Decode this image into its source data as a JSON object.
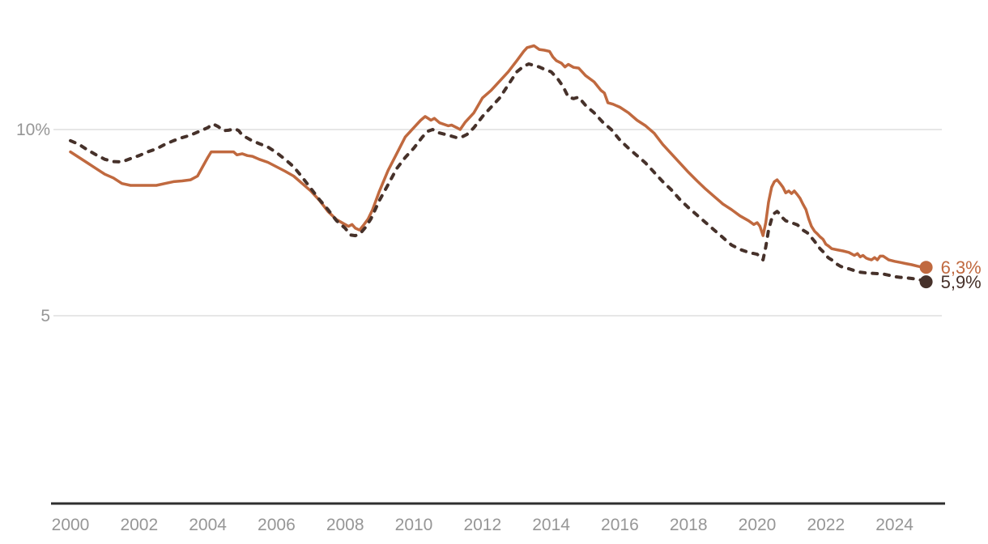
{
  "chart_data": {
    "type": "line",
    "title": "",
    "unit": "%",
    "grid": "horizontal-only",
    "legend_position": "end-of-line-labels",
    "x_axis": {
      "tick_labels": [
        "2000",
        "2002",
        "2004",
        "2006",
        "2008",
        "2010",
        "2012",
        "2014",
        "2016",
        "2018",
        "2020",
        "2022",
        "2024"
      ],
      "tick_years": [
        2000,
        2002,
        2004,
        2006,
        2008,
        2010,
        2012,
        2014,
        2016,
        2018,
        2020,
        2022,
        2024
      ],
      "range_years": [
        2000,
        2025
      ]
    },
    "y_axis": {
      "gridlines": [
        {
          "value": 10,
          "label": "10%"
        },
        {
          "value": 5,
          "label": "5"
        }
      ],
      "label_color": "#969696"
    },
    "colors": {
      "solid_line": "#c0693f",
      "dashed_line": "#46312a",
      "axis_line": "#2e2e2e",
      "gridline": "#e7e7e7",
      "tick_label": "#969696"
    },
    "series": [
      {
        "id": "solid",
        "style": "solid",
        "color": "#c0693f",
        "end_label": "6,3%",
        "end_value": 6.3,
        "points": [
          [
            2000.0,
            9.4
          ],
          [
            2000.25,
            9.25
          ],
          [
            2000.5,
            9.1
          ],
          [
            2000.75,
            8.95
          ],
          [
            2001.0,
            8.8
          ],
          [
            2001.25,
            8.7
          ],
          [
            2001.5,
            8.55
          ],
          [
            2001.75,
            8.5
          ],
          [
            2002.0,
            8.5
          ],
          [
            2002.25,
            8.5
          ],
          [
            2002.5,
            8.5
          ],
          [
            2002.75,
            8.55
          ],
          [
            2003.0,
            8.6
          ],
          [
            2003.25,
            8.62
          ],
          [
            2003.5,
            8.65
          ],
          [
            2003.7,
            8.75
          ],
          [
            2003.85,
            9.0
          ],
          [
            2004.0,
            9.25
          ],
          [
            2004.1,
            9.4
          ],
          [
            2004.25,
            9.4
          ],
          [
            2004.5,
            9.4
          ],
          [
            2004.75,
            9.4
          ],
          [
            2004.85,
            9.32
          ],
          [
            2005.0,
            9.35
          ],
          [
            2005.15,
            9.3
          ],
          [
            2005.3,
            9.28
          ],
          [
            2005.5,
            9.2
          ],
          [
            2005.75,
            9.12
          ],
          [
            2006.0,
            9.0
          ],
          [
            2006.25,
            8.88
          ],
          [
            2006.5,
            8.75
          ],
          [
            2006.75,
            8.55
          ],
          [
            2007.0,
            8.35
          ],
          [
            2007.25,
            8.1
          ],
          [
            2007.5,
            7.8
          ],
          [
            2007.75,
            7.58
          ],
          [
            2008.0,
            7.45
          ],
          [
            2008.1,
            7.4
          ],
          [
            2008.2,
            7.45
          ],
          [
            2008.3,
            7.35
          ],
          [
            2008.42,
            7.3
          ],
          [
            2008.55,
            7.45
          ],
          [
            2008.67,
            7.6
          ],
          [
            2008.8,
            7.85
          ],
          [
            2009.0,
            8.35
          ],
          [
            2009.25,
            8.9
          ],
          [
            2009.5,
            9.35
          ],
          [
            2009.75,
            9.8
          ],
          [
            2010.0,
            10.05
          ],
          [
            2010.2,
            10.25
          ],
          [
            2010.33,
            10.35
          ],
          [
            2010.5,
            10.25
          ],
          [
            2010.6,
            10.3
          ],
          [
            2010.75,
            10.18
          ],
          [
            2011.0,
            10.1
          ],
          [
            2011.1,
            10.12
          ],
          [
            2011.25,
            10.05
          ],
          [
            2011.35,
            10.0
          ],
          [
            2011.5,
            10.2
          ],
          [
            2011.75,
            10.45
          ],
          [
            2012.0,
            10.85
          ],
          [
            2012.25,
            11.05
          ],
          [
            2012.5,
            11.3
          ],
          [
            2012.75,
            11.55
          ],
          [
            2013.0,
            11.85
          ],
          [
            2013.2,
            12.1
          ],
          [
            2013.3,
            12.2
          ],
          [
            2013.5,
            12.25
          ],
          [
            2013.65,
            12.15
          ],
          [
            2013.8,
            12.13
          ],
          [
            2013.95,
            12.1
          ],
          [
            2014.05,
            11.95
          ],
          [
            2014.15,
            11.85
          ],
          [
            2014.3,
            11.78
          ],
          [
            2014.4,
            11.68
          ],
          [
            2014.5,
            11.75
          ],
          [
            2014.65,
            11.67
          ],
          [
            2014.8,
            11.65
          ],
          [
            2014.9,
            11.55
          ],
          [
            2015.0,
            11.45
          ],
          [
            2015.25,
            11.28
          ],
          [
            2015.45,
            11.05
          ],
          [
            2015.55,
            10.98
          ],
          [
            2015.65,
            10.72
          ],
          [
            2015.8,
            10.68
          ],
          [
            2016.0,
            10.6
          ],
          [
            2016.25,
            10.45
          ],
          [
            2016.5,
            10.25
          ],
          [
            2016.75,
            10.1
          ],
          [
            2017.0,
            9.9
          ],
          [
            2017.25,
            9.6
          ],
          [
            2017.5,
            9.35
          ],
          [
            2017.75,
            9.1
          ],
          [
            2018.0,
            8.85
          ],
          [
            2018.25,
            8.62
          ],
          [
            2018.5,
            8.4
          ],
          [
            2018.75,
            8.2
          ],
          [
            2019.0,
            8.0
          ],
          [
            2019.25,
            7.85
          ],
          [
            2019.5,
            7.68
          ],
          [
            2019.75,
            7.55
          ],
          [
            2019.9,
            7.45
          ],
          [
            2020.0,
            7.5
          ],
          [
            2020.08,
            7.4
          ],
          [
            2020.17,
            7.15
          ],
          [
            2020.25,
            7.5
          ],
          [
            2020.33,
            8.05
          ],
          [
            2020.42,
            8.45
          ],
          [
            2020.5,
            8.6
          ],
          [
            2020.58,
            8.65
          ],
          [
            2020.67,
            8.55
          ],
          [
            2020.75,
            8.45
          ],
          [
            2020.83,
            8.3
          ],
          [
            2020.92,
            8.35
          ],
          [
            2021.0,
            8.28
          ],
          [
            2021.08,
            8.35
          ],
          [
            2021.17,
            8.25
          ],
          [
            2021.25,
            8.15
          ],
          [
            2021.33,
            8.0
          ],
          [
            2021.42,
            7.85
          ],
          [
            2021.5,
            7.6
          ],
          [
            2021.58,
            7.4
          ],
          [
            2021.67,
            7.27
          ],
          [
            2021.75,
            7.2
          ],
          [
            2021.83,
            7.12
          ],
          [
            2021.92,
            7.05
          ],
          [
            2022.0,
            6.92
          ],
          [
            2022.08,
            6.87
          ],
          [
            2022.17,
            6.8
          ],
          [
            2022.33,
            6.77
          ],
          [
            2022.5,
            6.74
          ],
          [
            2022.67,
            6.7
          ],
          [
            2022.83,
            6.62
          ],
          [
            2022.92,
            6.67
          ],
          [
            2023.0,
            6.58
          ],
          [
            2023.08,
            6.62
          ],
          [
            2023.17,
            6.55
          ],
          [
            2023.25,
            6.52
          ],
          [
            2023.33,
            6.5
          ],
          [
            2023.42,
            6.56
          ],
          [
            2023.5,
            6.5
          ],
          [
            2023.58,
            6.6
          ],
          [
            2023.67,
            6.6
          ],
          [
            2023.75,
            6.55
          ],
          [
            2023.83,
            6.5
          ],
          [
            2023.92,
            6.48
          ],
          [
            2024.0,
            6.46
          ],
          [
            2024.17,
            6.43
          ],
          [
            2024.33,
            6.4
          ],
          [
            2024.5,
            6.37
          ],
          [
            2024.67,
            6.33
          ],
          [
            2024.83,
            6.3
          ],
          [
            2024.92,
            6.3
          ]
        ]
      },
      {
        "id": "dashed",
        "style": "dashed",
        "color": "#46312a",
        "end_label": "5,9%",
        "end_value": 5.9,
        "points": [
          [
            2000.0,
            9.7
          ],
          [
            2000.25,
            9.6
          ],
          [
            2000.5,
            9.45
          ],
          [
            2000.75,
            9.32
          ],
          [
            2001.0,
            9.2
          ],
          [
            2001.25,
            9.14
          ],
          [
            2001.5,
            9.13
          ],
          [
            2001.75,
            9.22
          ],
          [
            2002.0,
            9.3
          ],
          [
            2002.25,
            9.4
          ],
          [
            2002.5,
            9.48
          ],
          [
            2002.75,
            9.6
          ],
          [
            2003.0,
            9.7
          ],
          [
            2003.25,
            9.78
          ],
          [
            2003.5,
            9.85
          ],
          [
            2003.75,
            9.95
          ],
          [
            2004.0,
            10.05
          ],
          [
            2004.15,
            10.15
          ],
          [
            2004.3,
            10.08
          ],
          [
            2004.45,
            9.97
          ],
          [
            2004.6,
            9.98
          ],
          [
            2004.79,
            10.02
          ],
          [
            2004.9,
            9.97
          ],
          [
            2005.0,
            9.85
          ],
          [
            2005.25,
            9.72
          ],
          [
            2005.5,
            9.62
          ],
          [
            2005.75,
            9.53
          ],
          [
            2006.0,
            9.38
          ],
          [
            2006.25,
            9.2
          ],
          [
            2006.5,
            9.0
          ],
          [
            2006.75,
            8.72
          ],
          [
            2007.0,
            8.42
          ],
          [
            2007.25,
            8.12
          ],
          [
            2007.5,
            7.85
          ],
          [
            2007.75,
            7.55
          ],
          [
            2008.0,
            7.35
          ],
          [
            2008.15,
            7.17
          ],
          [
            2008.3,
            7.15
          ],
          [
            2008.45,
            7.22
          ],
          [
            2008.6,
            7.38
          ],
          [
            2008.75,
            7.6
          ],
          [
            2009.0,
            8.1
          ],
          [
            2009.25,
            8.52
          ],
          [
            2009.5,
            8.95
          ],
          [
            2009.75,
            9.25
          ],
          [
            2010.0,
            9.5
          ],
          [
            2010.25,
            9.8
          ],
          [
            2010.4,
            9.95
          ],
          [
            2010.55,
            10.0
          ],
          [
            2010.7,
            9.92
          ],
          [
            2011.0,
            9.85
          ],
          [
            2011.25,
            9.78
          ],
          [
            2011.4,
            9.8
          ],
          [
            2011.55,
            9.87
          ],
          [
            2011.75,
            10.05
          ],
          [
            2012.0,
            10.35
          ],
          [
            2012.25,
            10.6
          ],
          [
            2012.5,
            10.85
          ],
          [
            2012.75,
            11.2
          ],
          [
            2013.0,
            11.55
          ],
          [
            2013.2,
            11.7
          ],
          [
            2013.35,
            11.76
          ],
          [
            2013.5,
            11.72
          ],
          [
            2013.65,
            11.68
          ],
          [
            2013.8,
            11.62
          ],
          [
            2014.0,
            11.55
          ],
          [
            2014.2,
            11.35
          ],
          [
            2014.35,
            11.15
          ],
          [
            2014.5,
            10.87
          ],
          [
            2014.65,
            10.83
          ],
          [
            2014.8,
            10.87
          ],
          [
            2015.0,
            10.65
          ],
          [
            2015.25,
            10.45
          ],
          [
            2015.5,
            10.2
          ],
          [
            2015.75,
            10.0
          ],
          [
            2016.0,
            9.72
          ],
          [
            2016.25,
            9.5
          ],
          [
            2016.5,
            9.3
          ],
          [
            2016.75,
            9.1
          ],
          [
            2017.0,
            8.85
          ],
          [
            2017.25,
            8.6
          ],
          [
            2017.5,
            8.38
          ],
          [
            2017.75,
            8.12
          ],
          [
            2018.0,
            7.9
          ],
          [
            2018.25,
            7.7
          ],
          [
            2018.5,
            7.5
          ],
          [
            2018.75,
            7.3
          ],
          [
            2019.0,
            7.1
          ],
          [
            2019.25,
            6.9
          ],
          [
            2019.5,
            6.78
          ],
          [
            2019.75,
            6.7
          ],
          [
            2020.0,
            6.65
          ],
          [
            2020.08,
            6.58
          ],
          [
            2020.17,
            6.5
          ],
          [
            2020.25,
            6.85
          ],
          [
            2020.33,
            7.3
          ],
          [
            2020.42,
            7.6
          ],
          [
            2020.5,
            7.75
          ],
          [
            2020.58,
            7.8
          ],
          [
            2020.67,
            7.72
          ],
          [
            2020.75,
            7.62
          ],
          [
            2020.83,
            7.55
          ],
          [
            2021.0,
            7.5
          ],
          [
            2021.17,
            7.44
          ],
          [
            2021.25,
            7.38
          ],
          [
            2021.33,
            7.3
          ],
          [
            2021.42,
            7.25
          ],
          [
            2021.5,
            7.2
          ],
          [
            2021.58,
            7.1
          ],
          [
            2021.67,
            7.0
          ],
          [
            2021.75,
            6.9
          ],
          [
            2021.83,
            6.8
          ],
          [
            2021.92,
            6.72
          ],
          [
            2022.0,
            6.62
          ],
          [
            2022.08,
            6.55
          ],
          [
            2022.17,
            6.5
          ],
          [
            2022.25,
            6.45
          ],
          [
            2022.33,
            6.38
          ],
          [
            2022.42,
            6.33
          ],
          [
            2022.5,
            6.3
          ],
          [
            2022.67,
            6.26
          ],
          [
            2022.83,
            6.21
          ],
          [
            2023.0,
            6.17
          ],
          [
            2023.17,
            6.15
          ],
          [
            2023.33,
            6.14
          ],
          [
            2023.5,
            6.13
          ],
          [
            2023.67,
            6.12
          ],
          [
            2023.83,
            6.09
          ],
          [
            2024.0,
            6.05
          ],
          [
            2024.17,
            6.03
          ],
          [
            2024.33,
            6.02
          ],
          [
            2024.5,
            6.0
          ],
          [
            2024.67,
            5.98
          ],
          [
            2024.83,
            5.94
          ],
          [
            2024.92,
            5.91
          ]
        ]
      }
    ]
  }
}
